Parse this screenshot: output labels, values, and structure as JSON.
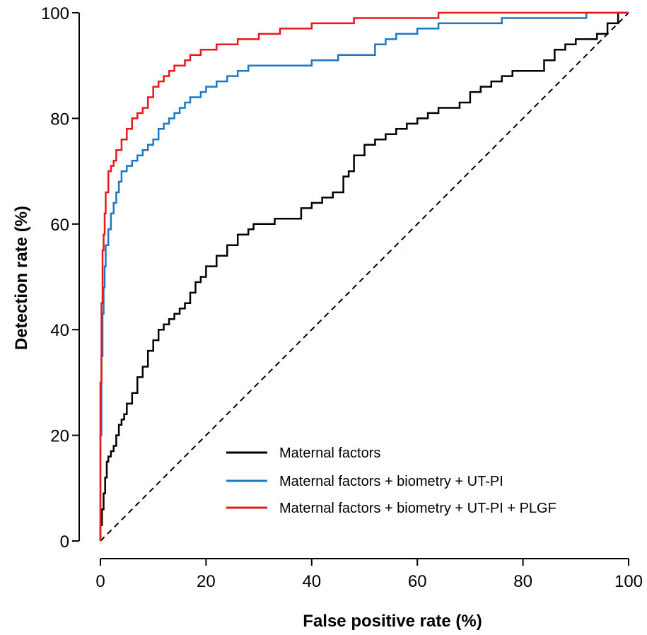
{
  "chart_data": {
    "type": "line",
    "xlabel": "False positive rate (%)",
    "ylabel": "Detection rate (%)",
    "xlim": [
      0,
      100
    ],
    "ylim": [
      0,
      100
    ],
    "xticks": [
      0,
      20,
      40,
      60,
      80,
      100
    ],
    "yticks": [
      0,
      20,
      40,
      60,
      80,
      100
    ],
    "grid": false,
    "legend": "bottom-right",
    "reference_line": {
      "style": "dashed",
      "color": "#000000",
      "x": [
        0,
        100
      ],
      "y": [
        0,
        100
      ]
    },
    "series": [
      {
        "name": "Maternal factors",
        "color": "#000000",
        "x": [
          0,
          0.3,
          0.6,
          0.9,
          1.2,
          1.5,
          2,
          2.5,
          3,
          3.5,
          4,
          4.5,
          5,
          6,
          7,
          8,
          9,
          10,
          11,
          12,
          13,
          14,
          15,
          16,
          17,
          18,
          19,
          20,
          22,
          24,
          26,
          28,
          29,
          30,
          33,
          35,
          38,
          40,
          42,
          44,
          46,
          47,
          48,
          50,
          52,
          54,
          56,
          58,
          60,
          62,
          64,
          66,
          68,
          70,
          72,
          74,
          76,
          78,
          80,
          82,
          84,
          86,
          88,
          90,
          92,
          94,
          96,
          98,
          100
        ],
        "y": [
          0,
          3,
          6,
          9,
          12,
          15,
          16,
          17,
          18,
          20,
          22,
          23,
          24,
          26,
          28,
          31,
          33,
          36,
          38,
          40,
          41,
          42,
          43,
          44,
          45,
          47,
          49,
          50,
          52,
          54,
          56,
          58,
          59,
          60,
          60,
          61,
          61,
          63,
          64,
          65,
          66,
          69,
          70,
          73,
          75,
          76,
          77,
          78,
          79,
          80,
          81,
          82,
          82,
          83,
          85,
          86,
          87,
          88,
          89,
          89,
          89,
          91,
          93,
          94,
          95,
          95,
          96,
          98,
          100
        ]
      },
      {
        "name": "Maternal factors + biometry + UT-PI",
        "color": "#1f77c4",
        "x": [
          0,
          0.2,
          0.4,
          0.6,
          0.8,
          1,
          1.5,
          2,
          2.5,
          3,
          3.5,
          4,
          5,
          6,
          7,
          8,
          9,
          10,
          11,
          12,
          13,
          14,
          15,
          16,
          17,
          18,
          19,
          20,
          22,
          24,
          26,
          28,
          30,
          35,
          40,
          45,
          50,
          52,
          54,
          56,
          58,
          60,
          64,
          68,
          72,
          76,
          80,
          84,
          88,
          90,
          92,
          95,
          98,
          100
        ],
        "y": [
          0,
          20,
          35,
          43,
          48,
          52,
          56,
          59,
          62,
          64,
          66,
          68,
          70,
          71,
          72,
          73,
          74,
          75,
          76,
          78,
          79,
          80,
          81,
          82,
          83,
          84,
          84,
          85,
          86,
          87,
          88,
          89,
          90,
          90,
          90,
          91,
          92,
          92,
          94,
          95,
          96,
          96,
          97,
          98,
          98,
          98,
          99,
          99,
          99,
          99,
          99,
          100,
          100,
          100
        ]
      },
      {
        "name": "Maternal factors + biometry + UT-PI + PLGF",
        "color": "#e8181b",
        "x": [
          0,
          0.2,
          0.4,
          0.6,
          0.8,
          1,
          1.5,
          2,
          2.5,
          3,
          4,
          5,
          6,
          7,
          8,
          9,
          10,
          11,
          12,
          13,
          14,
          15,
          16,
          17,
          18,
          19,
          20,
          22,
          24,
          26,
          28,
          30,
          32,
          34,
          36,
          40,
          44,
          48,
          52,
          56,
          60,
          64,
          68,
          72,
          76,
          80,
          84,
          88,
          92,
          96,
          100
        ],
        "y": [
          0,
          30,
          45,
          55,
          58,
          62,
          66,
          70,
          71,
          72,
          74,
          76,
          78,
          80,
          81,
          82,
          84,
          86,
          87,
          88,
          89,
          90,
          90,
          91,
          92,
          92,
          93,
          93,
          94,
          94,
          95,
          95,
          96,
          96,
          97,
          97,
          98,
          98,
          99,
          99,
          99,
          99,
          100,
          100,
          100,
          100,
          100,
          100,
          100,
          100,
          100
        ]
      }
    ]
  }
}
